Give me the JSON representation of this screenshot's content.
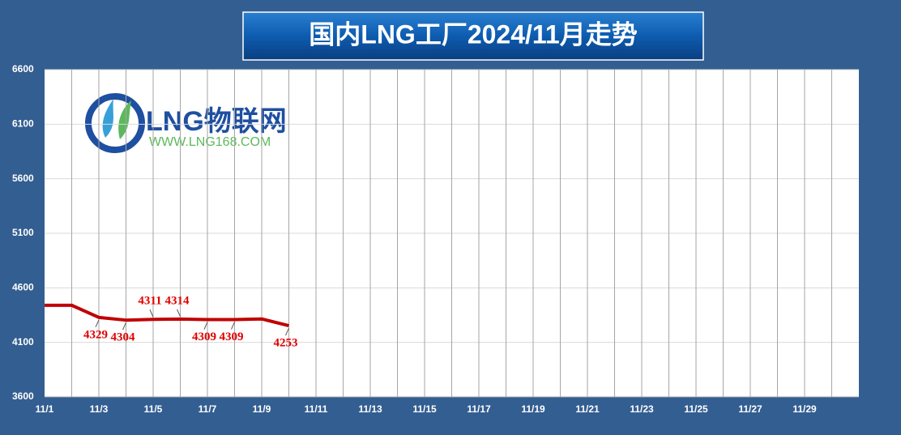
{
  "chart_data": {
    "type": "line",
    "title": "国内LNG工厂2024/11月走势",
    "logo_text": "LNG物联网",
    "logo_url": "WWW.LNG168.COM",
    "categories": [
      "11/1",
      null,
      "11/3",
      null,
      "11/5",
      null,
      "11/7",
      null,
      "11/9",
      null,
      "11/11",
      null,
      "11/13",
      null,
      "11/15",
      null,
      "11/17",
      null,
      "11/19",
      null,
      "11/21",
      null,
      "11/23",
      null,
      "11/25",
      null,
      "11/27",
      null,
      "11/29",
      null
    ],
    "series": [
      {
        "name": "LNG",
        "color": "#c00000",
        "values": [
          4440,
          4440,
          4329,
          4304,
          4311,
          4314,
          4309,
          4309,
          4315,
          4253,
          null,
          null,
          null,
          null,
          null,
          null,
          null,
          null,
          null,
          null,
          null,
          null,
          null,
          null,
          null,
          null,
          null,
          null,
          null,
          null
        ],
        "value_labels": [
          null,
          null,
          "4329",
          "4304",
          "4311",
          "4314",
          "4309",
          "4309",
          null,
          "4253",
          null,
          null,
          null,
          null,
          null,
          null,
          null,
          null,
          null,
          null,
          null,
          null,
          null,
          null,
          null,
          null,
          null,
          null,
          null,
          null
        ]
      }
    ],
    "ylim": [
      3600,
      6600
    ],
    "yticks": [
      3600,
      4100,
      4600,
      5100,
      5600,
      6100,
      6600
    ],
    "grid": true
  }
}
